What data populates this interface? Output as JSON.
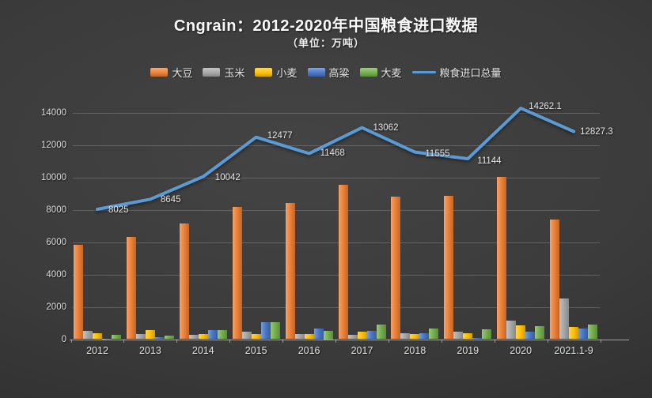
{
  "meta": {
    "title": "Cngrain：2012-2020年中国粮食进口数据",
    "subtitle": "（单位：万吨）"
  },
  "colors": {
    "background_center": "#444444",
    "background_edge": "#232323",
    "title_text": "#fafafa",
    "axis_text": "#dcdcdc",
    "soybean": "#ED7D31",
    "corn": "#A5A5A5",
    "wheat": "#FFC000",
    "sorghum": "#4472C4",
    "barley": "#70AD47",
    "total_line": "#5B9BD5"
  },
  "chart_data": {
    "type": "bar",
    "combo": "clustered bars + line overlay",
    "title": "Cngrain：2012-2020年中国粮食进口数据",
    "subtitle": "（单位：万吨）",
    "unit": "万吨",
    "categories": [
      "2012",
      "2013",
      "2014",
      "2015",
      "2016",
      "2017",
      "2018",
      "2019",
      "2020",
      "2021.1-9"
    ],
    "yticks": [
      0,
      2000,
      4000,
      6000,
      8000,
      10000,
      12000,
      14000
    ],
    "ylim": [
      0,
      14000
    ],
    "grid": true,
    "legend_position": "top",
    "series": [
      {
        "name": "大豆",
        "key": "soybean",
        "type": "bar",
        "color": "#ED7D31",
        "values": [
          5838,
          6338,
          7140,
          8169,
          8391,
          9553,
          8803,
          8851,
          10033,
          7397
        ]
      },
      {
        "name": "玉米",
        "key": "corn",
        "type": "bar",
        "color": "#A5A5A5",
        "values": [
          521,
          327,
          260,
          473,
          317,
          283,
          352,
          479,
          1130,
          2493
        ]
      },
      {
        "name": "小麦",
        "key": "wheat",
        "type": "bar",
        "color": "#FFC000",
        "values": [
          370,
          554,
          300,
          301,
          341,
          442,
          310,
          349,
          838,
          743
        ]
      },
      {
        "name": "高粱",
        "key": "sorghum",
        "type": "bar",
        "color": "#4472C4",
        "values": [
          9,
          108,
          578,
          1070,
          665,
          506,
          365,
          79,
          481,
          672
        ]
      },
      {
        "name": "大麦",
        "key": "barley",
        "type": "bar",
        "color": "#70AD47",
        "values": [
          253,
          234,
          541,
          1073,
          500,
          886,
          682,
          593,
          808,
          887
        ]
      },
      {
        "name": "粮食进口总量",
        "key": "total-imports",
        "type": "line",
        "color": "#5B9BD5",
        "values": [
          8025,
          8645,
          10042,
          12477,
          11468,
          13062,
          11555,
          11144,
          14262.1,
          12827.3
        ],
        "labels": [
          "8025",
          "8645",
          "10042",
          "12477",
          "11468",
          "13062",
          "11555",
          "11144",
          "14262.1",
          "12827.3"
        ]
      }
    ]
  }
}
